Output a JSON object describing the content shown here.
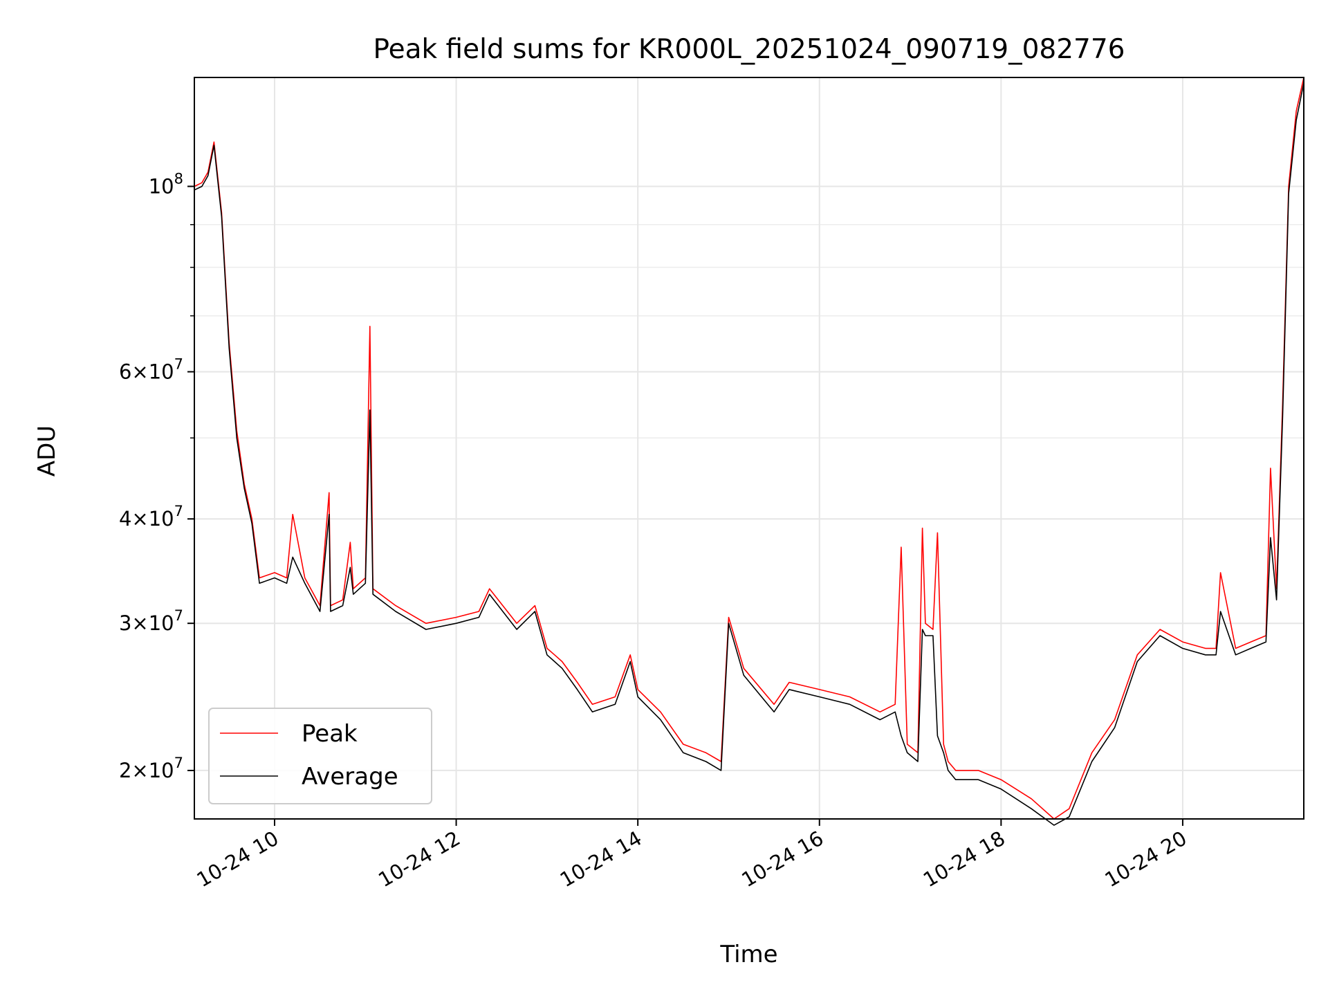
{
  "chart_data": {
    "type": "line",
    "title": "Peak field sums for KR000L_20251024_090719_082776",
    "xlabel": "Time",
    "ylabel": "ADU",
    "yscale": "log",
    "ylim": [
      17500000,
      135000000
    ],
    "xlim": [
      "10-24 09:07",
      "10-24 21:20"
    ],
    "grid": true,
    "legend_position": "lower-left",
    "x_ticks": [
      {
        "label": "10-24 10",
        "time": "10-24 10:00"
      },
      {
        "label": "10-24 12",
        "time": "10-24 12:00"
      },
      {
        "label": "10-24 14",
        "time": "10-24 14:00"
      },
      {
        "label": "10-24 16",
        "time": "10-24 16:00"
      },
      {
        "label": "10-24 18",
        "time": "10-24 18:00"
      },
      {
        "label": "10-24 20",
        "time": "10-24 20:00"
      }
    ],
    "y_ticks": [
      {
        "mantissa": "",
        "exp": "8",
        "value": 100000000
      },
      {
        "mantissa": "6",
        "exp": "7",
        "value": 60000000
      },
      {
        "mantissa": "4",
        "exp": "7",
        "value": 40000000
      },
      {
        "mantissa": "3",
        "exp": "7",
        "value": 30000000
      },
      {
        "mantissa": "2",
        "exp": "7",
        "value": 20000000
      }
    ],
    "y_minor_ticks": [
      90000000,
      80000000,
      70000000,
      50000000
    ],
    "series": [
      {
        "name": "Peak",
        "color": "#ff0000",
        "x": [
          "10-24 09:07",
          "10-24 09:12",
          "10-24 09:16",
          "10-24 09:20",
          "10-24 09:25",
          "10-24 09:30",
          "10-24 09:35",
          "10-24 09:40",
          "10-24 09:45",
          "10-24 09:50",
          "10-24 10:00",
          "10-24 10:08",
          "10-24 10:12",
          "10-24 10:20",
          "10-24 10:30",
          "10-24 10:36",
          "10-24 10:37",
          "10-24 10:45",
          "10-24 10:50",
          "10-24 10:52",
          "10-24 11:00",
          "10-24 11:03",
          "10-24 11:05",
          "10-24 11:20",
          "10-24 11:40",
          "10-24 12:00",
          "10-24 12:15",
          "10-24 12:22",
          "10-24 12:40",
          "10-24 12:52",
          "10-24 13:00",
          "10-24 13:05",
          "10-24 13:10",
          "10-24 13:20",
          "10-24 13:30",
          "10-24 13:45",
          "10-24 13:55",
          "10-24 14:00",
          "10-24 14:15",
          "10-24 14:30",
          "10-24 14:45",
          "10-24 14:55",
          "10-24 15:00",
          "10-24 15:10",
          "10-24 15:30",
          "10-24 15:40",
          "10-24 16:00",
          "10-24 16:20",
          "10-24 16:40",
          "10-24 16:50",
          "10-24 16:54",
          "10-24 16:58",
          "10-24 17:05",
          "10-24 17:08",
          "10-24 17:10",
          "10-24 17:15",
          "10-24 17:18",
          "10-24 17:22",
          "10-24 17:25",
          "10-24 17:30",
          "10-24 17:45",
          "10-24 18:00",
          "10-24 18:20",
          "10-24 18:35",
          "10-24 18:45",
          "10-24 19:00",
          "10-24 19:15",
          "10-24 19:30",
          "10-24 19:45",
          "10-24 20:00",
          "10-24 20:15",
          "10-24 20:22",
          "10-24 20:25",
          "10-24 20:35",
          "10-24 20:45",
          "10-24 20:55",
          "10-24 20:58",
          "10-24 21:02",
          "10-24 21:06",
          "10-24 21:10",
          "10-24 21:15",
          "10-24 21:20"
        ],
        "y": [
          100000000,
          101000000,
          104000000,
          113000000,
          93000000,
          65000000,
          51000000,
          44000000,
          40000000,
          34000000,
          34500000,
          34000000,
          40500000,
          34000000,
          31500000,
          43000000,
          31500000,
          32000000,
          37500000,
          33000000,
          34000000,
          68000000,
          33000000,
          31500000,
          30000000,
          30500000,
          31000000,
          33000000,
          30000000,
          31500000,
          28000000,
          27500000,
          27000000,
          25500000,
          24000000,
          24500000,
          27500000,
          25000000,
          23500000,
          21500000,
          21000000,
          20500000,
          30500000,
          26500000,
          24000000,
          25500000,
          25000000,
          24500000,
          23500000,
          24000000,
          37000000,
          21500000,
          21000000,
          39000000,
          30000000,
          29500000,
          38500000,
          21500000,
          20500000,
          20000000,
          20000000,
          19500000,
          18500000,
          17500000,
          18000000,
          21000000,
          23000000,
          27500000,
          29500000,
          28500000,
          28000000,
          28000000,
          34500000,
          28000000,
          28500000,
          29000000,
          46000000,
          33000000,
          55000000,
          100000000,
          123000000,
          135000000
        ]
      },
      {
        "name": "Average",
        "color": "#000000",
        "x": [
          "10-24 09:07",
          "10-24 09:12",
          "10-24 09:16",
          "10-24 09:20",
          "10-24 09:25",
          "10-24 09:30",
          "10-24 09:35",
          "10-24 09:40",
          "10-24 09:45",
          "10-24 09:50",
          "10-24 10:00",
          "10-24 10:08",
          "10-24 10:12",
          "10-24 10:20",
          "10-24 10:30",
          "10-24 10:36",
          "10-24 10:37",
          "10-24 10:45",
          "10-24 10:50",
          "10-24 10:52",
          "10-24 11:00",
          "10-24 11:03",
          "10-24 11:05",
          "10-24 11:20",
          "10-24 11:40",
          "10-24 12:00",
          "10-24 12:15",
          "10-24 12:22",
          "10-24 12:40",
          "10-24 12:52",
          "10-24 13:00",
          "10-24 13:05",
          "10-24 13:10",
          "10-24 13:20",
          "10-24 13:30",
          "10-24 13:45",
          "10-24 13:55",
          "10-24 14:00",
          "10-24 14:15",
          "10-24 14:30",
          "10-24 14:45",
          "10-24 14:55",
          "10-24 15:00",
          "10-24 15:10",
          "10-24 15:30",
          "10-24 15:40",
          "10-24 16:00",
          "10-24 16:20",
          "10-24 16:40",
          "10-24 16:50",
          "10-24 16:54",
          "10-24 16:58",
          "10-24 17:05",
          "10-24 17:08",
          "10-24 17:10",
          "10-24 17:15",
          "10-24 17:18",
          "10-24 17:22",
          "10-24 17:25",
          "10-24 17:30",
          "10-24 17:45",
          "10-24 18:00",
          "10-24 18:20",
          "10-24 18:35",
          "10-24 18:45",
          "10-24 19:00",
          "10-24 19:15",
          "10-24 19:30",
          "10-24 19:45",
          "10-24 20:00",
          "10-24 20:15",
          "10-24 20:22",
          "10-24 20:25",
          "10-24 20:35",
          "10-24 20:45",
          "10-24 20:55",
          "10-24 20:58",
          "10-24 21:02",
          "10-24 21:06",
          "10-24 21:10",
          "10-24 21:15",
          "10-24 21:20"
        ],
        "y": [
          99000000,
          100000000,
          103000000,
          112000000,
          92000000,
          64000000,
          50000000,
          43500000,
          39500000,
          33500000,
          34000000,
          33500000,
          36000000,
          33500000,
          31000000,
          40500000,
          31000000,
          31500000,
          35000000,
          32500000,
          33500000,
          54000000,
          32500000,
          31000000,
          29500000,
          30000000,
          30500000,
          32500000,
          29500000,
          31000000,
          27500000,
          27000000,
          26500000,
          25000000,
          23500000,
          24000000,
          27000000,
          24500000,
          23000000,
          21000000,
          20500000,
          20000000,
          30000000,
          26000000,
          23500000,
          25000000,
          24500000,
          24000000,
          23000000,
          23500000,
          22000000,
          21000000,
          20500000,
          29500000,
          29000000,
          29000000,
          22000000,
          21000000,
          20000000,
          19500000,
          19500000,
          19000000,
          18000000,
          17200000,
          17600000,
          20500000,
          22500000,
          27000000,
          29000000,
          28000000,
          27500000,
          27500000,
          31000000,
          27500000,
          28000000,
          28500000,
          38000000,
          32000000,
          53000000,
          98000000,
          120000000,
          133000000
        ]
      }
    ]
  }
}
